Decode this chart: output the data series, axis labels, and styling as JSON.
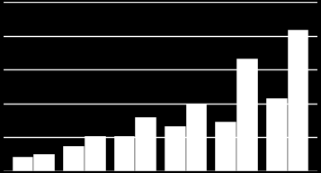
{
  "groups": 6,
  "bar1_values": [
    1.0,
    1.8,
    2.5,
    3.2,
    3.5,
    5.2
  ],
  "bar2_values": [
    1.2,
    2.5,
    3.8,
    4.8,
    8.0,
    10.0
  ],
  "bar_color": "#ffffff",
  "background_color": "#000000",
  "grid_color": "#ffffff",
  "ylim": [
    0,
    12
  ],
  "bar_width": 0.42,
  "gridline_count": 5,
  "grid_linewidth": 1.0
}
